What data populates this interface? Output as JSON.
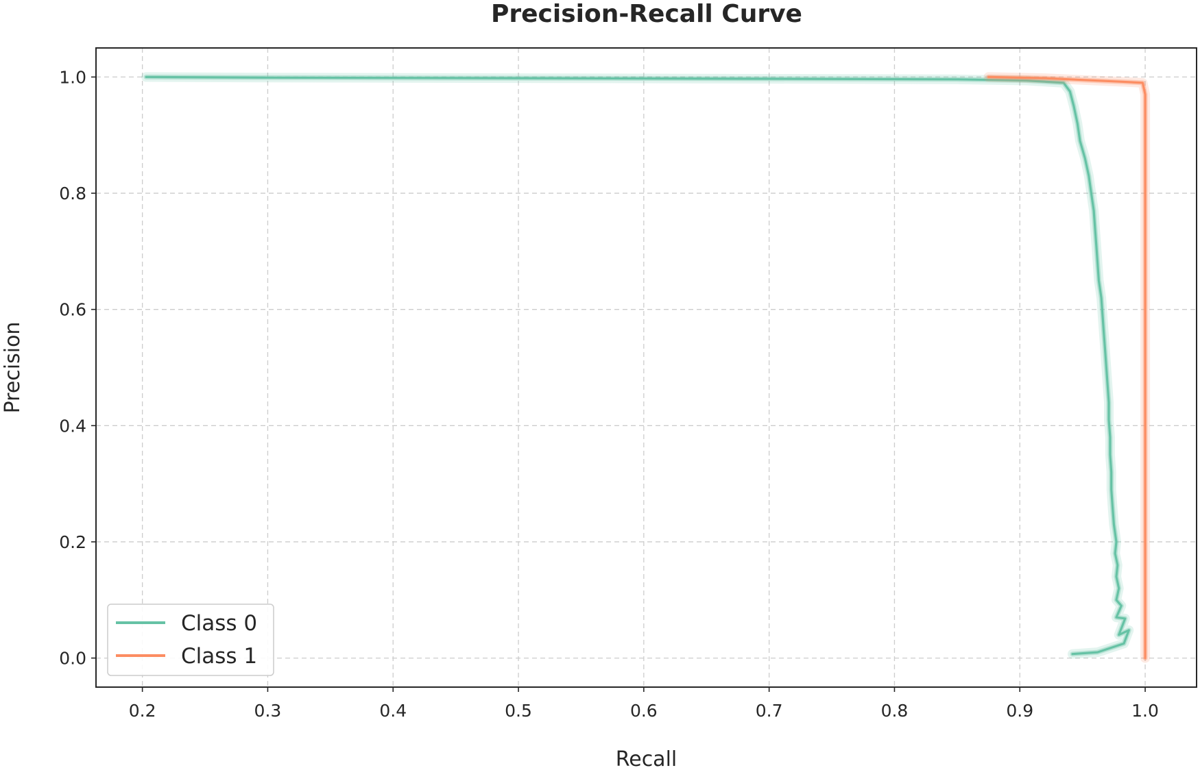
{
  "chart_data": {
    "type": "line",
    "title": "Precision-Recall Curve",
    "xlabel": "Recall",
    "ylabel": "Precision",
    "xlim": [
      0.163,
      1.041
    ],
    "ylim": [
      -0.05,
      1.05
    ],
    "xticks": [
      0.2,
      0.3,
      0.4,
      0.5,
      0.6,
      0.7,
      0.8,
      0.9,
      1.0
    ],
    "yticks": [
      0.0,
      0.2,
      0.4,
      0.6,
      0.8,
      1.0
    ],
    "xtick_labels": [
      "0.2",
      "0.3",
      "0.4",
      "0.5",
      "0.6",
      "0.7",
      "0.8",
      "0.9",
      "1.0"
    ],
    "ytick_labels": [
      "0.0",
      "0.2",
      "0.4",
      "0.6",
      "0.8",
      "1.0"
    ],
    "grid": true,
    "legend_position": "lower-left",
    "series": [
      {
        "name": "Class 0",
        "color": "#66c2a5",
        "points": [
          [
            0.203,
            1.0
          ],
          [
            0.3,
            0.999
          ],
          [
            0.5,
            0.998
          ],
          [
            0.7,
            0.997
          ],
          [
            0.85,
            0.996
          ],
          [
            0.88,
            0.995
          ],
          [
            0.905,
            0.994
          ],
          [
            0.935,
            0.99
          ],
          [
            0.94,
            0.975
          ],
          [
            0.943,
            0.95
          ],
          [
            0.946,
            0.92
          ],
          [
            0.948,
            0.89
          ],
          [
            0.952,
            0.86
          ],
          [
            0.955,
            0.83
          ],
          [
            0.957,
            0.8
          ],
          [
            0.959,
            0.77
          ],
          [
            0.96,
            0.74
          ],
          [
            0.961,
            0.71
          ],
          [
            0.962,
            0.68
          ],
          [
            0.963,
            0.65
          ],
          [
            0.965,
            0.62
          ],
          [
            0.966,
            0.59
          ],
          [
            0.967,
            0.56
          ],
          [
            0.968,
            0.53
          ],
          [
            0.969,
            0.5
          ],
          [
            0.97,
            0.47
          ],
          [
            0.971,
            0.44
          ],
          [
            0.971,
            0.41
          ],
          [
            0.972,
            0.38
          ],
          [
            0.972,
            0.35
          ],
          [
            0.973,
            0.32
          ],
          [
            0.973,
            0.29
          ],
          [
            0.974,
            0.26
          ],
          [
            0.975,
            0.23
          ],
          [
            0.977,
            0.2
          ],
          [
            0.976,
            0.18
          ],
          [
            0.978,
            0.16
          ],
          [
            0.977,
            0.14
          ],
          [
            0.979,
            0.12
          ],
          [
            0.977,
            0.1
          ],
          [
            0.981,
            0.09
          ],
          [
            0.977,
            0.07
          ],
          [
            0.984,
            0.068
          ],
          [
            0.979,
            0.04
          ],
          [
            0.987,
            0.048
          ],
          [
            0.983,
            0.025
          ],
          [
            0.962,
            0.01
          ],
          [
            0.942,
            0.007
          ]
        ]
      },
      {
        "name": "Class 1",
        "color": "#fc8d62",
        "points": [
          [
            0.875,
            1.0
          ],
          [
            0.92,
            0.998
          ],
          [
            0.95,
            0.995
          ],
          [
            0.98,
            0.992
          ],
          [
            0.998,
            0.99
          ],
          [
            1.0,
            0.97
          ],
          [
            1.0,
            0.5
          ],
          [
            1.0,
            0.0
          ]
        ]
      }
    ]
  }
}
